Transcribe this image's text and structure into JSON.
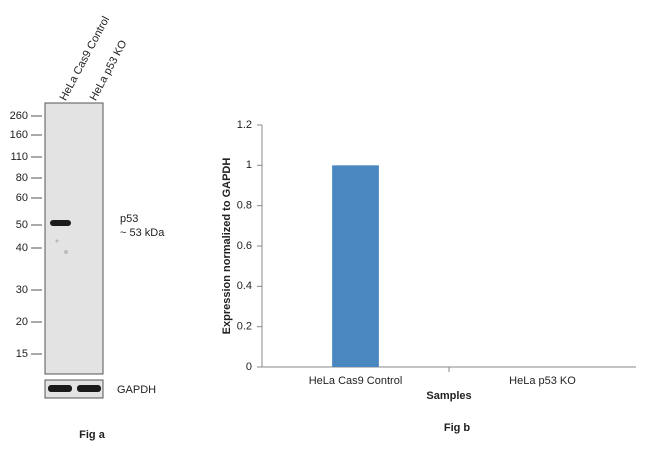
{
  "blot": {
    "lanes": [
      "HeLa Cas9 Control",
      "HeLa p53 KO"
    ],
    "markers": [
      260,
      160,
      110,
      80,
      60,
      50,
      40,
      30,
      20,
      15
    ],
    "band_label": "p53",
    "band_size": "~ 53 kDa",
    "loading_control": "GAPDH",
    "caption": "Fig a"
  },
  "chart_data": {
    "type": "bar",
    "title": "Fig b",
    "x_label": "Samples",
    "y_label": "Expression normalized to GAPDH",
    "categories": [
      "HeLa Cas9 Control",
      "HeLa p53 KO"
    ],
    "values": [
      1,
      0
    ],
    "color": "#4a86c0",
    "ylim": [
      0,
      1.2
    ],
    "yticks": [
      0,
      0.2,
      0.4,
      0.6,
      0.8,
      1,
      1.2
    ]
  }
}
